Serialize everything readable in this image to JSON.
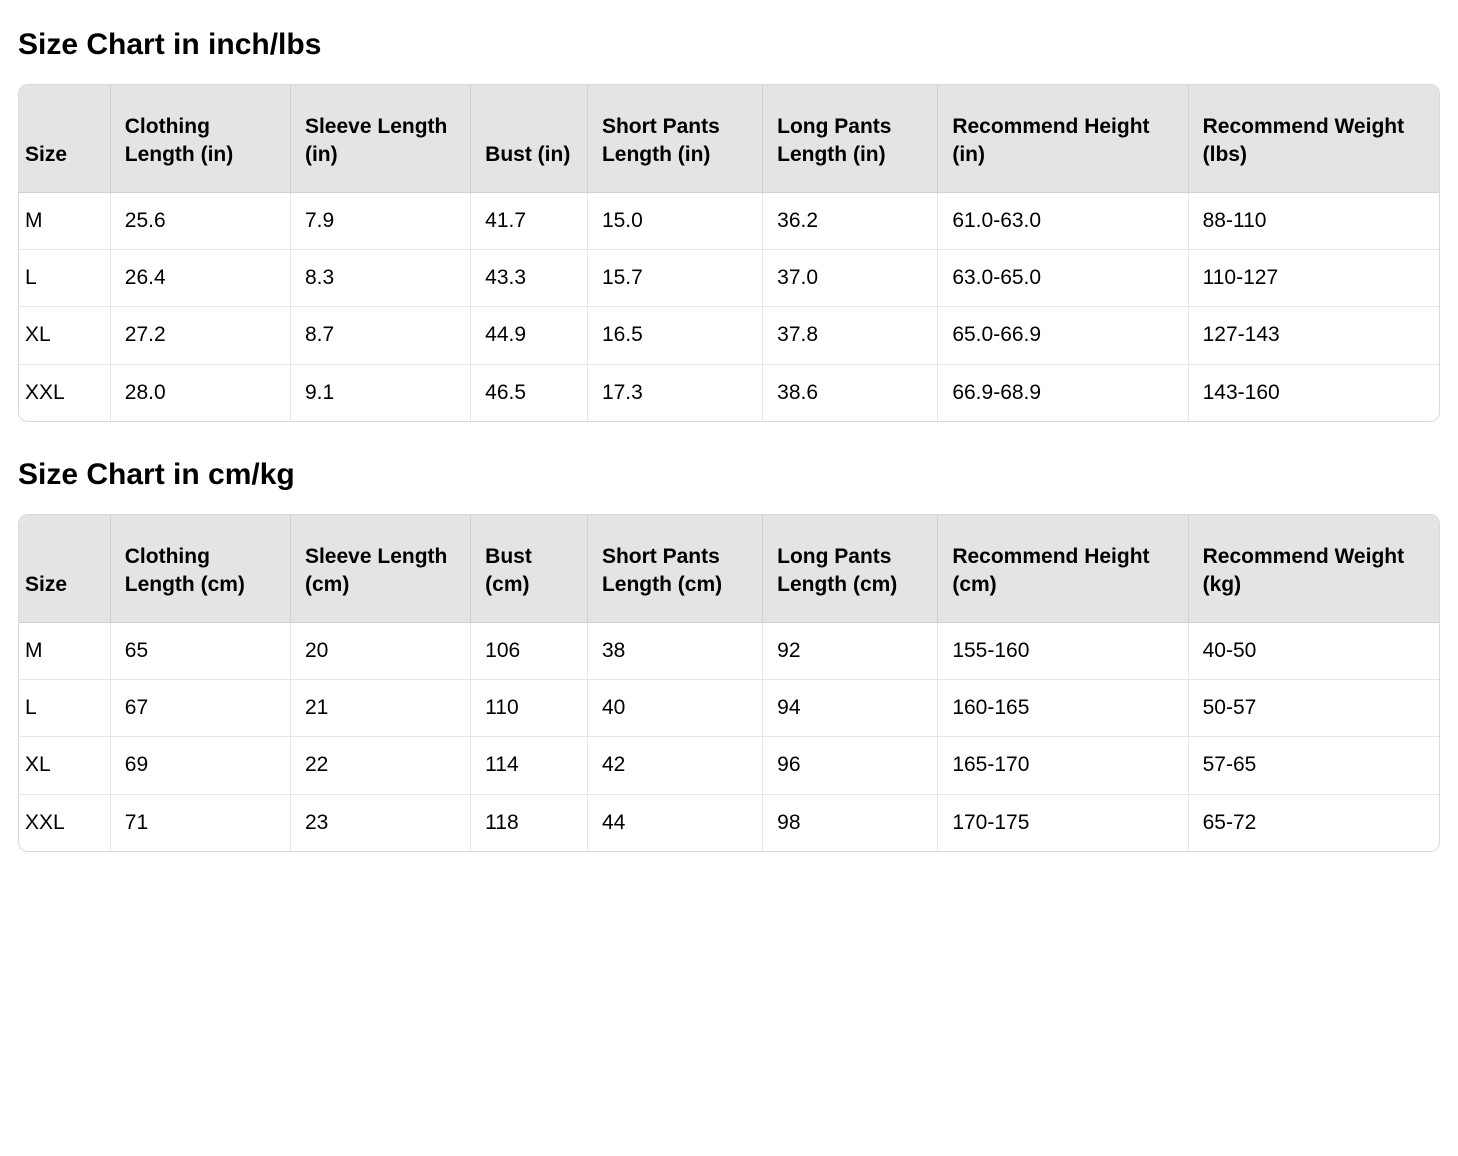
{
  "type": "table",
  "background_color": "#ffffff",
  "text_color": "#000000",
  "title_fontsize": 30,
  "cell_fontsize": 21,
  "header_bg": "#e4e4e4",
  "row_bg": "#ffffff",
  "border_color": "#d9d9d9",
  "border_radius": 10,
  "column_widths_pct": [
    5.5,
    10.8,
    10.8,
    7,
    10.5,
    10.5,
    15,
    15
  ],
  "tables": [
    {
      "title": "Size Chart in inch/lbs",
      "columns": [
        "Size",
        "Clothing Length (in)",
        "Sleeve Length (in)",
        "Bust (in)",
        "Short Pants Length (in)",
        "Long Pants Length (in)",
        "Recommend Height (in)",
        "Recommend Weight (lbs)"
      ],
      "rows": [
        [
          "M",
          "25.6",
          "7.9",
          "41.7",
          "15.0",
          "36.2",
          "61.0-63.0",
          "88-110"
        ],
        [
          "L",
          "26.4",
          "8.3",
          "43.3",
          "15.7",
          "37.0",
          "63.0-65.0",
          "110-127"
        ],
        [
          "XL",
          "27.2",
          "8.7",
          "44.9",
          "16.5",
          "37.8",
          "65.0-66.9",
          "127-143"
        ],
        [
          "XXL",
          "28.0",
          "9.1",
          "46.5",
          "17.3",
          "38.6",
          "66.9-68.9",
          "143-160"
        ]
      ]
    },
    {
      "title": "Size Chart in cm/kg",
      "columns": [
        "Size",
        "Clothing Length (cm)",
        "Sleeve Length (cm)",
        "Bust (cm)",
        "Short Pants Length (cm)",
        "Long Pants Length (cm)",
        "Recommend Height (cm)",
        "Recommend Weight (kg)"
      ],
      "rows": [
        [
          "M",
          "65",
          "20",
          "106",
          "38",
          "92",
          "155-160",
          "40-50"
        ],
        [
          "L",
          "67",
          "21",
          "110",
          "40",
          "94",
          "160-165",
          "50-57"
        ],
        [
          "XL",
          "69",
          "22",
          "114",
          "42",
          "96",
          "165-170",
          "57-65"
        ],
        [
          "XXL",
          "71",
          "23",
          "118",
          "44",
          "98",
          "170-175",
          "65-72"
        ]
      ]
    }
  ]
}
